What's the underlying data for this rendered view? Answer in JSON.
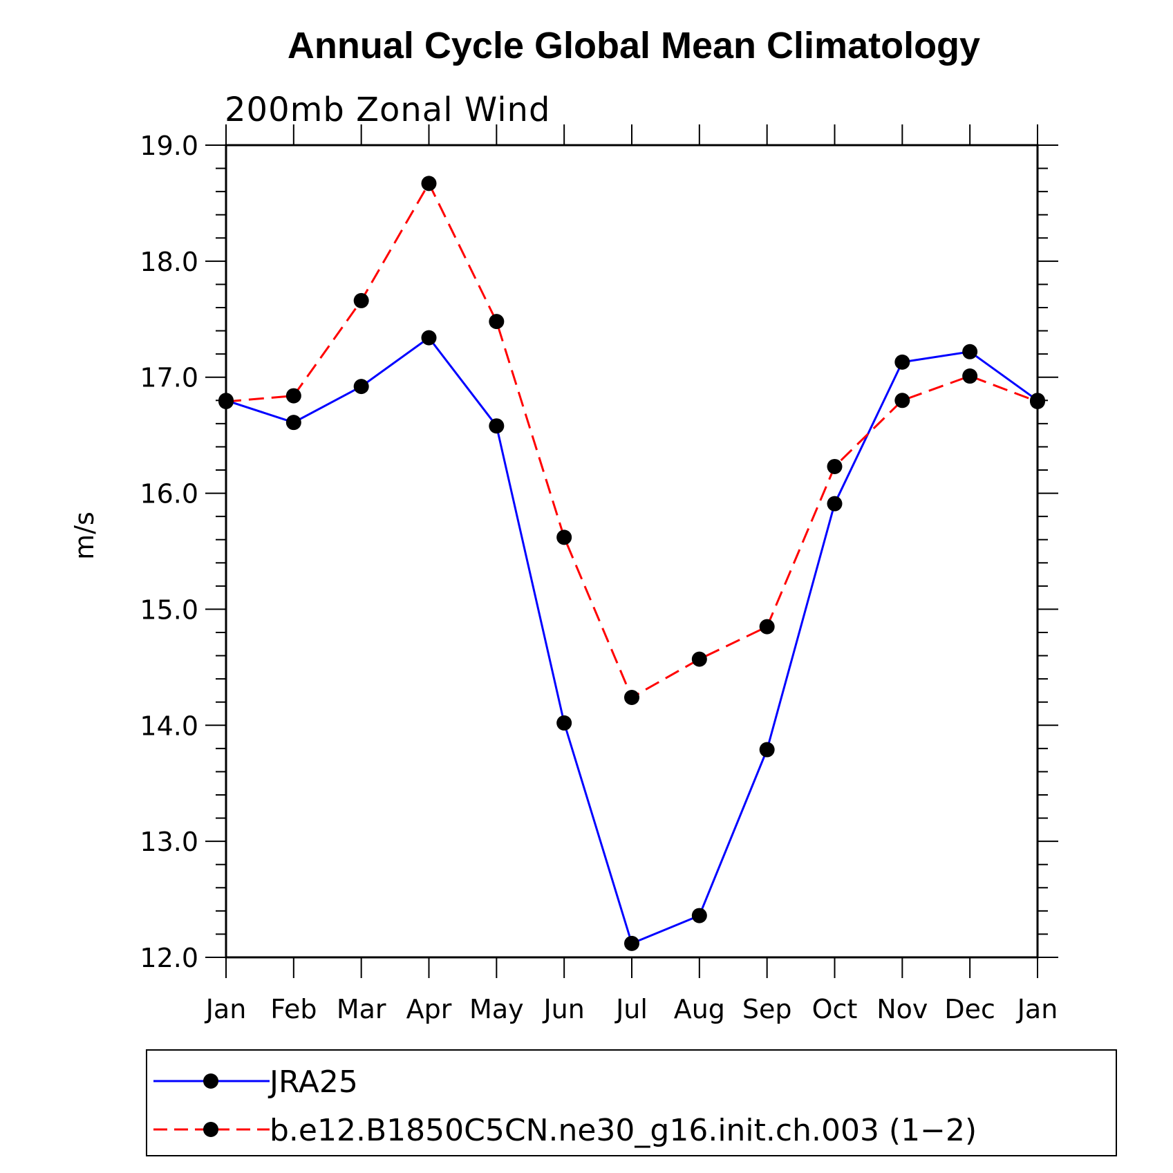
{
  "chart_data": {
    "type": "line",
    "title": "Annual Cycle Global Mean Climatology",
    "subtitle": "200mb Zonal Wind",
    "ylabel": "m/s",
    "xlabel": "",
    "categories": [
      "Jan",
      "Feb",
      "Mar",
      "Apr",
      "May",
      "Jun",
      "Jul",
      "Aug",
      "Sep",
      "Oct",
      "Nov",
      "Dec",
      "Jan"
    ],
    "ylim": [
      12.0,
      19.0
    ],
    "yticks": [
      "12.0",
      "13.0",
      "14.0",
      "15.0",
      "16.0",
      "17.0",
      "18.0",
      "19.0"
    ],
    "grid": false,
    "legend_position": "bottom",
    "series": [
      {
        "name": "JRA25",
        "color": "#0000ff",
        "style": "solid",
        "values": [
          16.8,
          16.61,
          16.92,
          17.34,
          16.58,
          14.02,
          12.12,
          12.36,
          13.79,
          15.91,
          17.13,
          17.22,
          16.8
        ]
      },
      {
        "name": "b.e12.B1850C5CN.ne30_g16.init.ch.003 (1−2)",
        "color": "#ff0000",
        "style": "dashed",
        "values": [
          16.79,
          16.84,
          17.66,
          18.67,
          17.48,
          15.62,
          14.24,
          14.57,
          14.85,
          16.23,
          16.8,
          17.01,
          16.79
        ]
      }
    ]
  }
}
